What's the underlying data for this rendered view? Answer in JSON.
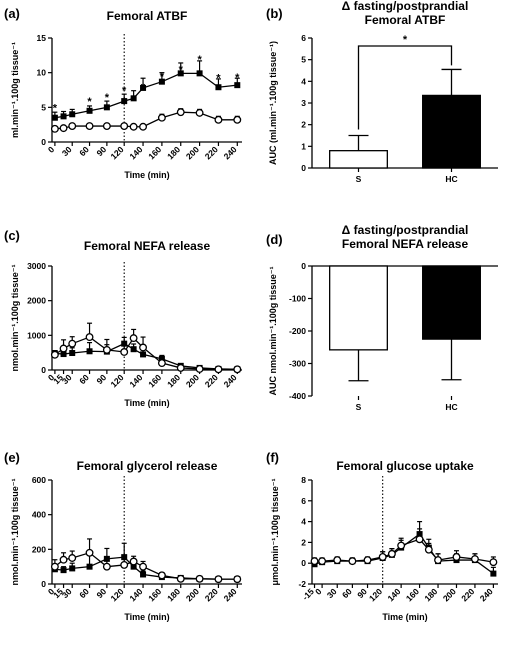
{
  "chart_data": [
    {
      "id": "a",
      "panel_label": "(a)",
      "type": "line",
      "title": "Femoral ATBF",
      "xlabel": "Time (min)",
      "ylabel": "ml.min⁻¹.100g tissue⁻¹",
      "ylim": [
        0,
        15
      ],
      "yticks": [
        0,
        5,
        10,
        15
      ],
      "xticks": [
        0,
        15,
        30,
        60,
        90,
        120,
        140,
        160,
        180,
        200,
        220,
        240
      ],
      "xticks_left": [
        0,
        30,
        60,
        90,
        120
      ],
      "xticks_right": [
        140,
        160,
        180,
        200,
        220,
        240
      ],
      "xtick_labels": [
        "0",
        "30",
        "60",
        "90",
        "120",
        "140",
        "160",
        "180",
        "200",
        "220",
        "240"
      ],
      "vline": 120,
      "series": [
        {
          "marker": "square",
          "x": [
            0,
            15,
            30,
            60,
            90,
            120,
            130,
            140,
            160,
            180,
            200,
            220,
            240
          ],
          "y": [
            3.5,
            3.7,
            4.0,
            4.5,
            5.0,
            5.9,
            6.3,
            7.8,
            8.7,
            9.9,
            9.9,
            7.9,
            8.2
          ],
          "err": [
            0.8,
            0.7,
            0.7,
            0.7,
            0.9,
            1.0,
            1.1,
            1.4,
            1.3,
            1.5,
            1.8,
            1.2,
            1.0
          ]
        },
        {
          "marker": "circle",
          "x": [
            0,
            15,
            30,
            60,
            90,
            120,
            130,
            140,
            160,
            180,
            200,
            220,
            240
          ],
          "y": [
            1.9,
            2.0,
            2.3,
            2.3,
            2.3,
            2.3,
            2.2,
            2.2,
            3.5,
            4.3,
            4.2,
            3.2,
            3.2
          ],
          "err": [
            0.3,
            0.3,
            0.3,
            0.3,
            0.3,
            0.3,
            0.3,
            0.3,
            0.5,
            0.5,
            0.5,
            0.5,
            0.5
          ]
        }
      ],
      "annotations": [
        {
          "text": "*",
          "x": 0,
          "y": 5.0
        },
        {
          "text": "*",
          "x": 60,
          "y": 5.9
        },
        {
          "text": "*",
          "x": 90,
          "y": 6.5
        },
        {
          "text": "*",
          "x": 120,
          "y": 7.5
        },
        {
          "text": "*",
          "x": 140,
          "y": 8.0
        },
        {
          "text": "*",
          "x": 160,
          "y": 9.5
        },
        {
          "text": "*",
          "x": 180,
          "y": 10.5
        },
        {
          "text": "*",
          "x": 200,
          "y": 12.0
        },
        {
          "text": "*",
          "x": 220,
          "y": 9.3
        },
        {
          "text": "*",
          "x": 240,
          "y": 9.4
        }
      ]
    },
    {
      "id": "b",
      "panel_label": "(b)",
      "type": "bar",
      "title": "Δ fasting/postprandial",
      "subtitle": "Femoral ATBF",
      "xlabel": "",
      "ylabel": "AUC (ml.min⁻¹.100g tissue⁻¹)",
      "ylim": [
        0,
        6
      ],
      "yticks": [
        0,
        1,
        2,
        3,
        4,
        5,
        6
      ],
      "categories": [
        "S",
        "HC"
      ],
      "values": [
        0.8,
        3.35
      ],
      "err": [
        0.7,
        1.2
      ],
      "colors": [
        "#ffffff",
        "#000000"
      ],
      "significance": "*"
    },
    {
      "id": "c",
      "panel_label": "(c)",
      "type": "line",
      "title": "Femoral NEFA release",
      "xlabel": "Time (min)",
      "ylabel": "nmol.min⁻¹.100g tissue⁻¹",
      "ylim": [
        0,
        3000
      ],
      "yticks": [
        0,
        1000,
        2000,
        3000
      ],
      "xticks": [
        0,
        15,
        30,
        60,
        90,
        120,
        140,
        160,
        180,
        200,
        220,
        240
      ],
      "xticks_left": [
        0,
        15,
        30,
        60,
        90,
        120
      ],
      "xticks_right": [
        140,
        160,
        180,
        200,
        220,
        240
      ],
      "xtick_labels": [
        "0",
        "15",
        "30",
        "60",
        "90",
        "120",
        "140",
        "160",
        "180",
        "200",
        "220",
        "240"
      ],
      "vline": 120,
      "series": [
        {
          "marker": "square",
          "x": [
            0,
            15,
            30,
            60,
            90,
            120,
            130,
            140,
            160,
            180,
            200,
            220,
            240
          ],
          "y": [
            480,
            460,
            490,
            540,
            530,
            760,
            600,
            450,
            320,
            120,
            60,
            30,
            20
          ],
          "err": [
            80,
            80,
            150,
            250,
            200,
            180,
            150,
            150,
            100,
            60,
            30,
            20,
            20
          ]
        },
        {
          "marker": "circle",
          "x": [
            0,
            15,
            30,
            60,
            90,
            120,
            130,
            140,
            160,
            180,
            200,
            220,
            240
          ],
          "y": [
            440,
            620,
            760,
            950,
            580,
            520,
            920,
            650,
            200,
            60,
            30,
            20,
            20
          ],
          "err": [
            80,
            250,
            200,
            400,
            300,
            200,
            250,
            300,
            100,
            40,
            30,
            20,
            20
          ]
        }
      ]
    },
    {
      "id": "d",
      "panel_label": "(d)",
      "type": "bar",
      "title": "Δ fasting/postprandial",
      "subtitle": "Femoral NEFA release",
      "xlabel": "",
      "ylabel": "AUC nmol.min⁻¹.100g tissue⁻¹",
      "ylim": [
        -400,
        0
      ],
      "yticks": [
        0,
        -100,
        -200,
        -300,
        -400
      ],
      "categories": [
        "S",
        "HC"
      ],
      "values": [
        -258,
        -225
      ],
      "err": [
        95,
        125
      ],
      "colors": [
        "#ffffff",
        "#000000"
      ]
    },
    {
      "id": "e",
      "panel_label": "(e)",
      "type": "line",
      "title": "Femoral glycerol release",
      "xlabel": "Time (min)",
      "ylabel": "nmol.min⁻¹.100g tissue⁻¹",
      "ylim": [
        0,
        600
      ],
      "yticks": [
        0,
        200,
        400,
        600
      ],
      "xticks": [
        0,
        15,
        30,
        60,
        90,
        120,
        140,
        160,
        180,
        200,
        220,
        240
      ],
      "xticks_left": [
        0,
        15,
        30,
        60,
        90,
        120
      ],
      "xticks_right": [
        140,
        160,
        180,
        200,
        220,
        240
      ],
      "xtick_labels": [
        "0",
        "15",
        "30",
        "60",
        "90",
        "120",
        "140",
        "160",
        "180",
        "200",
        "220",
        "240"
      ],
      "vline": 120,
      "series": [
        {
          "marker": "square",
          "x": [
            0,
            15,
            30,
            60,
            90,
            120,
            130,
            140,
            160,
            180,
            200,
            220,
            240
          ],
          "y": [
            85,
            80,
            90,
            100,
            145,
            155,
            100,
            55,
            40,
            35,
            30,
            28,
            28
          ],
          "err": [
            25,
            20,
            30,
            80,
            60,
            80,
            40,
            20,
            15,
            10,
            8,
            8,
            8
          ]
        },
        {
          "marker": "circle",
          "x": [
            0,
            15,
            30,
            60,
            90,
            120,
            130,
            140,
            160,
            180,
            200,
            220,
            240
          ],
          "y": [
            100,
            140,
            150,
            180,
            100,
            110,
            130,
            100,
            50,
            30,
            30,
            28,
            28
          ],
          "err": [
            40,
            40,
            40,
            80,
            50,
            50,
            30,
            30,
            15,
            10,
            8,
            8,
            8
          ]
        }
      ]
    },
    {
      "id": "f",
      "panel_label": "(f)",
      "type": "line",
      "title": "Femoral glucose uptake",
      "xlabel": "Time (min)",
      "ylabel": "μmol.min⁻¹.100g tissue⁻¹",
      "ylim": [
        -2,
        8
      ],
      "yticks": [
        -2,
        0,
        2,
        4,
        6,
        8
      ],
      "xticks": [
        -15,
        0,
        30,
        60,
        90,
        120,
        140,
        160,
        180,
        200,
        220,
        240
      ],
      "xticks_left": [
        -15,
        0,
        30,
        60,
        90,
        120
      ],
      "xticks_right": [
        140,
        160,
        180,
        200,
        220,
        240
      ],
      "xtick_labels": [
        "-15",
        "0",
        "30",
        "60",
        "90",
        "120",
        "140",
        "160",
        "180",
        "200",
        "220",
        "240"
      ],
      "vline": 120,
      "series": [
        {
          "marker": "square",
          "x": [
            -15,
            0,
            30,
            60,
            90,
            120,
            130,
            140,
            160,
            170,
            180,
            200,
            220,
            240
          ],
          "y": [
            -0.1,
            0.1,
            0.2,
            0.2,
            0.2,
            0.5,
            0.8,
            1.5,
            2.8,
            1.5,
            0.2,
            0.3,
            0.3,
            -1.0
          ],
          "err": [
            0.3,
            0.3,
            0.3,
            0.3,
            0.3,
            0.6,
            0.6,
            0.7,
            1.2,
            0.8,
            0.7,
            0.6,
            0.6,
            0.6
          ]
        },
        {
          "marker": "circle",
          "x": [
            -15,
            0,
            30,
            60,
            90,
            120,
            130,
            140,
            160,
            170,
            180,
            200,
            220,
            240
          ],
          "y": [
            0.2,
            0.2,
            0.3,
            0.2,
            0.3,
            0.6,
            0.9,
            1.7,
            2.3,
            1.3,
            0.3,
            0.6,
            0.4,
            0.1
          ],
          "err": [
            0.3,
            0.3,
            0.3,
            0.3,
            0.3,
            0.5,
            0.5,
            0.7,
            1.0,
            0.6,
            0.6,
            0.6,
            0.5,
            0.5
          ]
        }
      ]
    }
  ]
}
